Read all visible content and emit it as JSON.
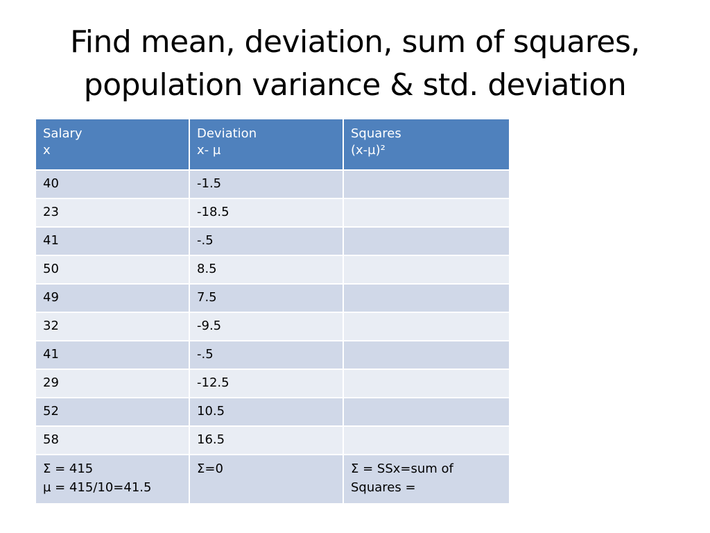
{
  "title": {
    "line1": "Find mean, deviation, sum of squares,",
    "line2": "population variance & std. deviation"
  },
  "table": {
    "headers": [
      {
        "line1": "Salary",
        "line2": "x"
      },
      {
        "line1": "Deviation",
        "line2": "x- µ"
      },
      {
        "line1": "Squares",
        "line2": "(x-µ)²"
      }
    ],
    "rows": [
      {
        "salary": "40",
        "deviation": "-1.5",
        "square": ""
      },
      {
        "salary": "23",
        "deviation": "-18.5",
        "square": ""
      },
      {
        "salary": "41",
        "deviation": "-.5",
        "square": ""
      },
      {
        "salary": "50",
        "deviation": "8.5",
        "square": ""
      },
      {
        "salary": "49",
        "deviation": "7.5",
        "square": ""
      },
      {
        "salary": "32",
        "deviation": "-9.5",
        "square": ""
      },
      {
        "salary": "41",
        "deviation": "-.5",
        "square": ""
      },
      {
        "salary": "29",
        "deviation": "-12.5",
        "square": ""
      },
      {
        "salary": "52",
        "deviation": "10.5",
        "square": ""
      },
      {
        "salary": "58",
        "deviation": "16.5",
        "square": ""
      }
    ],
    "summary": {
      "salary_line1": "Σ = 415",
      "salary_line2": "µ = 415/10=41.5",
      "deviation": "Σ=0",
      "square_line1": "Σ = SSx=sum of",
      "square_line2": "Squares ="
    }
  }
}
